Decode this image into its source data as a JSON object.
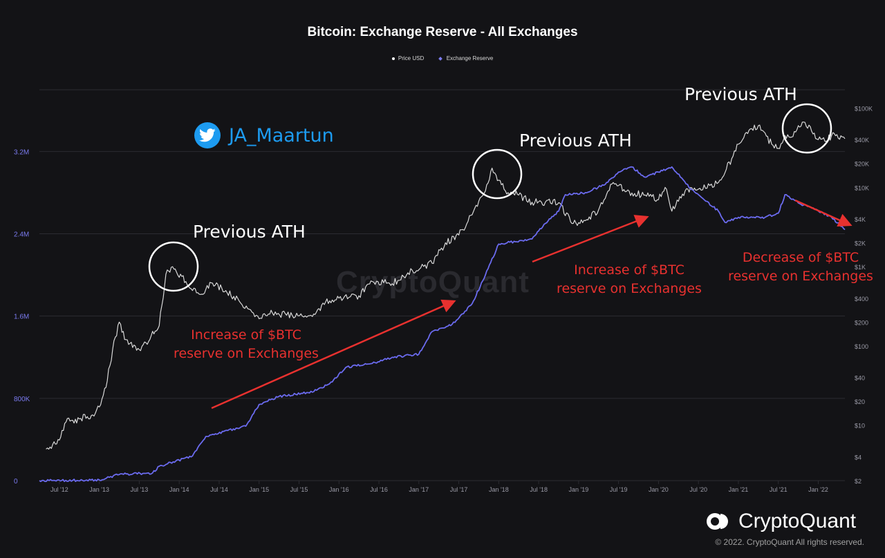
{
  "chart_data": {
    "type": "line",
    "title": "Bitcoin: Exchange Reserve - All Exchanges",
    "legend_position": "top-center",
    "grid": true,
    "x_tick_labels": [
      "Jul '12",
      "Jan '13",
      "Jul '13",
      "Jan '14",
      "Jul '14",
      "Jan '15",
      "Jul '15",
      "Jan '16",
      "Jul '16",
      "Jan '17",
      "Jul '17",
      "Jan '18",
      "Jul '18",
      "Jan '19",
      "Jul '19",
      "Jan '20",
      "Jul '20",
      "Jan '21",
      "Jul '21",
      "Jan '22"
    ],
    "x_range": [
      "2012-04",
      "2022-05"
    ],
    "y_left": {
      "scale": "linear",
      "range": [
        0,
        3800000
      ],
      "tick_labels": [
        "0",
        "800K",
        "1.6M",
        "2.4M",
        "3.2M"
      ],
      "tick_values": [
        0,
        800000,
        1600000,
        2400000,
        3200000
      ],
      "color": "#7b7bf0"
    },
    "y_right": {
      "scale": "log",
      "range": [
        2,
        170000
      ],
      "tick_labels": [
        "$2",
        "$4",
        "$10",
        "$20",
        "$40",
        "$100",
        "$200",
        "$400",
        "$1K",
        "$2K",
        "$4K",
        "$10K",
        "$20K",
        "$40K",
        "$100K"
      ],
      "tick_values": [
        2,
        4,
        10,
        20,
        40,
        100,
        200,
        400,
        1000,
        2000,
        4000,
        10000,
        20000,
        40000,
        100000
      ]
    },
    "series": [
      {
        "name": "Price USD",
        "axis": "right",
        "color": "#d9d9d9",
        "points": [
          [
            "2012-05",
            5
          ],
          [
            "2012-07",
            6.5
          ],
          [
            "2012-08",
            11
          ],
          [
            "2012-10",
            12
          ],
          [
            "2012-12",
            13.5
          ],
          [
            "2013-01",
            17
          ],
          [
            "2013-02",
            30
          ],
          [
            "2013-03",
            90
          ],
          [
            "2013-04",
            200
          ],
          [
            "2013-05",
            120
          ],
          [
            "2013-07",
            90
          ],
          [
            "2013-08",
            110
          ],
          [
            "2013-10",
            180
          ],
          [
            "2013-11",
            800
          ],
          [
            "2013-12",
            1000
          ],
          [
            "2014-02",
            650
          ],
          [
            "2014-04",
            450
          ],
          [
            "2014-06",
            620
          ],
          [
            "2014-08",
            500
          ],
          [
            "2014-10",
            370
          ],
          [
            "2015-01",
            220
          ],
          [
            "2015-03",
            260
          ],
          [
            "2015-06",
            240
          ],
          [
            "2015-09",
            235
          ],
          [
            "2015-11",
            360
          ],
          [
            "2016-01",
            400
          ],
          [
            "2016-04",
            430
          ],
          [
            "2016-06",
            650
          ],
          [
            "2016-09",
            610
          ],
          [
            "2016-12",
            900
          ],
          [
            "2017-03",
            1100
          ],
          [
            "2017-05",
            2000
          ],
          [
            "2017-07",
            2500
          ],
          [
            "2017-09",
            4500
          ],
          [
            "2017-11",
            9000
          ],
          [
            "2017-12",
            17500
          ],
          [
            "2018-02",
            9000
          ],
          [
            "2018-04",
            8000
          ],
          [
            "2018-06",
            6500
          ],
          [
            "2018-08",
            6500
          ],
          [
            "2018-10",
            6400
          ],
          [
            "2018-12",
            3500
          ],
          [
            "2019-02",
            3800
          ],
          [
            "2019-04",
            5200
          ],
          [
            "2019-06",
            11000
          ],
          [
            "2019-07",
            10500
          ],
          [
            "2019-09",
            8500
          ],
          [
            "2019-11",
            8000
          ],
          [
            "2020-01",
            7000
          ],
          [
            "2020-02",
            10000
          ],
          [
            "2020-03",
            5000
          ],
          [
            "2020-05",
            9000
          ],
          [
            "2020-07",
            9500
          ],
          [
            "2020-10",
            11500
          ],
          [
            "2020-12",
            23000
          ],
          [
            "2021-01",
            35000
          ],
          [
            "2021-03",
            55000
          ],
          [
            "2021-04",
            60000
          ],
          [
            "2021-06",
            35000
          ],
          [
            "2021-07",
            31000
          ],
          [
            "2021-08",
            45000
          ],
          [
            "2021-09",
            43000
          ],
          [
            "2021-10",
            60000
          ],
          [
            "2021-11",
            66000
          ],
          [
            "2022-01",
            40000
          ],
          [
            "2022-02",
            38000
          ],
          [
            "2022-03",
            45000
          ],
          [
            "2022-05",
            41000
          ]
        ]
      },
      {
        "name": "Exchange Reserve",
        "axis": "left",
        "color": "#6b6bef",
        "points": [
          [
            "2012-04",
            0
          ],
          [
            "2012-09",
            3000
          ],
          [
            "2013-01",
            7000
          ],
          [
            "2013-04",
            60000
          ],
          [
            "2013-09",
            75000
          ],
          [
            "2013-10",
            140000
          ],
          [
            "2014-03",
            240000
          ],
          [
            "2014-05",
            430000
          ],
          [
            "2014-11",
            530000
          ],
          [
            "2015-01",
            740000
          ],
          [
            "2015-04",
            820000
          ],
          [
            "2015-09",
            860000
          ],
          [
            "2015-12",
            960000
          ],
          [
            "2016-02",
            1100000
          ],
          [
            "2016-06",
            1140000
          ],
          [
            "2016-09",
            1200000
          ],
          [
            "2017-01",
            1230000
          ],
          [
            "2017-03",
            1450000
          ],
          [
            "2017-06",
            1520000
          ],
          [
            "2017-09",
            1720000
          ],
          [
            "2017-11",
            2000000
          ],
          [
            "2018-01",
            2300000
          ],
          [
            "2018-06",
            2350000
          ],
          [
            "2018-08",
            2500000
          ],
          [
            "2018-10",
            2620000
          ],
          [
            "2018-11",
            2780000
          ],
          [
            "2019-02",
            2800000
          ],
          [
            "2019-05",
            2880000
          ],
          [
            "2019-07",
            3000000
          ],
          [
            "2019-09",
            3050000
          ],
          [
            "2019-11",
            2950000
          ],
          [
            "2020-01",
            3000000
          ],
          [
            "2020-03",
            3050000
          ],
          [
            "2020-06",
            2830000
          ],
          [
            "2020-10",
            2620000
          ],
          [
            "2020-11",
            2510000
          ],
          [
            "2021-01",
            2560000
          ],
          [
            "2021-05",
            2560000
          ],
          [
            "2021-07",
            2600000
          ],
          [
            "2021-08",
            2780000
          ],
          [
            "2021-10",
            2700000
          ],
          [
            "2021-12",
            2650000
          ],
          [
            "2022-03",
            2560000
          ],
          [
            "2022-05",
            2440000
          ]
        ]
      }
    ]
  },
  "annotations": {
    "ath_labels": [
      "Previous ATH",
      "Previous ATH",
      "Previous ATH"
    ],
    "increase_1": [
      "Increase of $BTC",
      "reserve on Exchanges"
    ],
    "increase_2": [
      "Increase of $BTC",
      "reserve on Exchanges"
    ],
    "decrease": [
      "Decrease of $BTC",
      "reserve on Exchanges"
    ],
    "circle_color": "#ffffff",
    "arrow_color": "#e8312f"
  },
  "twitter_handle": "JA_Maartun",
  "watermark": "CryptoQuant",
  "brand": "CryptoQuant",
  "copyright": "© 2022. CryptoQuant All rights reserved.",
  "colors": {
    "background": "#131316",
    "grid": "#2c2c32",
    "axis_text": "#9a9aa6"
  }
}
